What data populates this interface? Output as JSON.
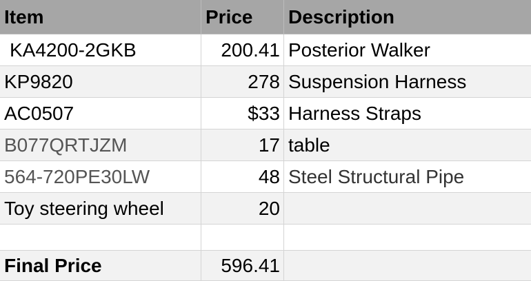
{
  "headers": {
    "item": "Item",
    "price": "Price",
    "description": "Description"
  },
  "rows": [
    {
      "item": "KA4200-2GKB",
      "price": "200.41",
      "description": "Posterior Walker"
    },
    {
      "item": "KP9820",
      "price": "278",
      "description": "Suspension Harness"
    },
    {
      "item": "AC0507",
      "price": "$33",
      "description": "Harness Straps"
    },
    {
      "item": "B077QRTJZM",
      "price": "17",
      "description": "table"
    },
    {
      "item": "564-720PE30LW",
      "price": "48",
      "description": "Steel Structural Pipe"
    },
    {
      "item": "Toy steering wheel",
      "price": "20",
      "description": ""
    },
    {
      "item": "",
      "price": "",
      "description": ""
    }
  ],
  "total": {
    "label": "Final Price",
    "value": "596.41",
    "description": ""
  },
  "colors": {
    "header_bg": "#a6a6a6",
    "alt_row_bg": "#f2f2f2",
    "grid": "#d4d4d4"
  }
}
